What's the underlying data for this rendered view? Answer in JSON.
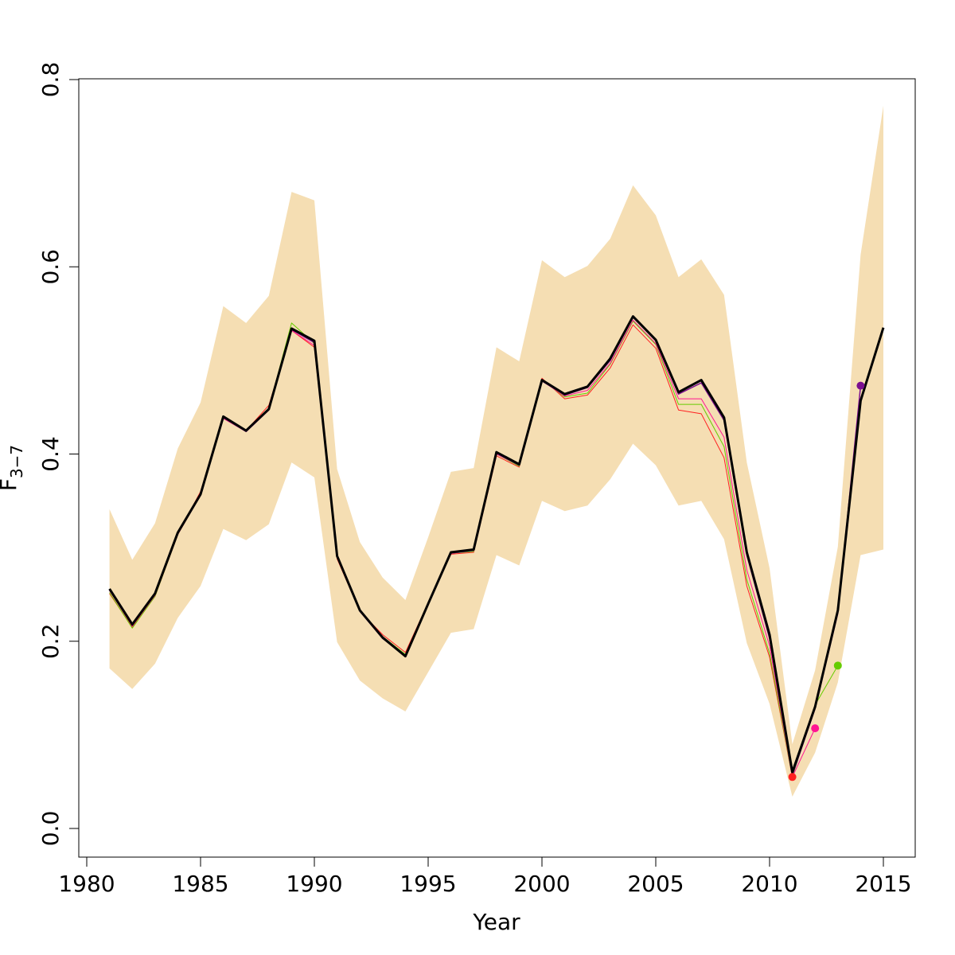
{
  "chart_data": {
    "type": "line",
    "xlabel": "Year",
    "ylabel_main": "F",
    "ylabel_sub": "3−7",
    "xlim": [
      1980,
      2015
    ],
    "ylim": [
      0,
      0.8
    ],
    "x_ticks": [
      "1980",
      "1985",
      "1990",
      "1995",
      "2000",
      "2005",
      "2010",
      "2015"
    ],
    "y_ticks": [
      "0.0",
      "0.2",
      "0.4",
      "0.6",
      "0.8"
    ],
    "band": {
      "color": "#f5deb3",
      "x": [
        1981,
        1982,
        1983,
        1984,
        1985,
        1986,
        1987,
        1988,
        1989,
        1990,
        1991,
        1992,
        1993,
        1994,
        1995,
        1996,
        1997,
        1998,
        1999,
        2000,
        2001,
        2002,
        2003,
        2004,
        2005,
        2006,
        2007,
        2008,
        2009,
        2010,
        2011,
        2012,
        2013,
        2014,
        2015
      ],
      "upper": [
        0.341,
        0.287,
        0.326,
        0.406,
        0.455,
        0.558,
        0.54,
        0.569,
        0.68,
        0.671,
        0.384,
        0.306,
        0.268,
        0.244,
        0.311,
        0.381,
        0.385,
        0.514,
        0.499,
        0.607,
        0.589,
        0.601,
        0.63,
        0.687,
        0.655,
        0.589,
        0.608,
        0.57,
        0.391,
        0.278,
        0.09,
        0.169,
        0.301,
        0.613,
        0.772
      ],
      "lower": [
        0.171,
        0.149,
        0.176,
        0.225,
        0.259,
        0.32,
        0.308,
        0.325,
        0.391,
        0.375,
        0.199,
        0.158,
        0.139,
        0.125,
        0.167,
        0.209,
        0.213,
        0.292,
        0.281,
        0.35,
        0.339,
        0.345,
        0.373,
        0.411,
        0.388,
        0.345,
        0.35,
        0.309,
        0.198,
        0.133,
        0.034,
        0.081,
        0.156,
        0.292,
        0.298
      ]
    },
    "series": [
      {
        "color": "#000000",
        "width": 3,
        "x": [
          1981,
          1982,
          1983,
          1984,
          1985,
          1986,
          1987,
          1988,
          1989,
          1990,
          1991,
          1992,
          1993,
          1994,
          1995,
          1996,
          1997,
          1998,
          1999,
          2000,
          2001,
          2002,
          2003,
          2004,
          2005,
          2006,
          2007,
          2008,
          2009,
          2010,
          2011,
          2012,
          2013,
          2014,
          2015
        ],
        "values": [
          0.256,
          0.218,
          0.251,
          0.316,
          0.357,
          0.44,
          0.425,
          0.448,
          0.534,
          0.521,
          0.291,
          0.233,
          0.204,
          0.184,
          0.24,
          0.295,
          0.298,
          0.402,
          0.389,
          0.479,
          0.464,
          0.472,
          0.502,
          0.547,
          0.522,
          0.466,
          0.479,
          0.439,
          0.295,
          0.207,
          0.06,
          0.13,
          0.233,
          0.457,
          0.535
        ]
      },
      {
        "color": "#7b0f8f",
        "width": 1.5,
        "x": [
          1981,
          1982,
          1983,
          1984,
          1985,
          1986,
          1987,
          1988,
          1989,
          1990,
          1991,
          1992,
          1993,
          1994,
          1995,
          1996,
          1997,
          1998,
          1999,
          2000,
          2001,
          2002,
          2003,
          2004,
          2005,
          2006,
          2007,
          2008,
          2009,
          2010,
          2011,
          2012,
          2013,
          2014
        ],
        "values": [
          0.255,
          0.217,
          0.25,
          0.315,
          0.356,
          0.439,
          0.424,
          0.447,
          0.533,
          0.519,
          0.29,
          0.232,
          0.203,
          0.184,
          0.239,
          0.294,
          0.297,
          0.401,
          0.388,
          0.478,
          0.463,
          0.471,
          0.5,
          0.546,
          0.521,
          0.464,
          0.476,
          0.436,
          0.292,
          0.203,
          0.057,
          0.128,
          0.23,
          0.473
        ],
        "end_marker": true
      },
      {
        "color": "#ff1493",
        "width": 1,
        "x": [
          1981,
          1982,
          1983,
          1984,
          1985,
          1986,
          1987,
          1988,
          1989,
          1990,
          1991,
          1992,
          1993,
          1994,
          1995,
          1996,
          1997,
          1998,
          1999,
          2000,
          2001,
          2002,
          2003,
          2004,
          2005,
          2006,
          2007,
          2008,
          2009,
          2010,
          2011,
          2012
        ],
        "values": [
          0.254,
          0.216,
          0.249,
          0.314,
          0.356,
          0.438,
          0.424,
          0.448,
          0.532,
          0.516,
          0.289,
          0.232,
          0.204,
          0.185,
          0.239,
          0.294,
          0.297,
          0.4,
          0.388,
          0.478,
          0.462,
          0.468,
          0.497,
          0.543,
          0.518,
          0.459,
          0.459,
          0.418,
          0.276,
          0.195,
          0.055,
          0.107
        ],
        "end_marker": true
      },
      {
        "color": "#66cc00",
        "width": 1,
        "x": [
          1981,
          1982,
          1983,
          1984,
          1985,
          1986,
          1987,
          1988,
          1989,
          1990,
          1991,
          1992,
          1993,
          1994,
          1995,
          1996,
          1997,
          1998,
          1999,
          2000,
          2001,
          2002,
          2003,
          2004,
          2005,
          2006,
          2007,
          2008,
          2009,
          2010,
          2011,
          2012,
          2013
        ],
        "values": [
          0.252,
          0.214,
          0.248,
          0.314,
          0.356,
          0.438,
          0.424,
          0.449,
          0.54,
          0.518,
          0.289,
          0.232,
          0.205,
          0.186,
          0.24,
          0.294,
          0.296,
          0.4,
          0.387,
          0.479,
          0.461,
          0.465,
          0.496,
          0.542,
          0.517,
          0.453,
          0.453,
          0.408,
          0.266,
          0.187,
          0.055,
          0.132,
          0.174
        ],
        "end_marker": true
      },
      {
        "color": "#ff2020",
        "width": 1,
        "x": [
          1981,
          1982,
          1983,
          1984,
          1985,
          1986,
          1987,
          1988,
          1989,
          1990,
          1991,
          1992,
          1993,
          1994,
          1995,
          1996,
          1997,
          1998,
          1999,
          2000,
          2001,
          2002,
          2003,
          2004,
          2005,
          2006,
          2007,
          2008,
          2009,
          2010,
          2011
        ],
        "values": [
          0.251,
          0.215,
          0.248,
          0.314,
          0.36,
          0.439,
          0.425,
          0.452,
          0.532,
          0.514,
          0.288,
          0.232,
          0.207,
          0.188,
          0.241,
          0.293,
          0.295,
          0.398,
          0.386,
          0.481,
          0.459,
          0.463,
          0.492,
          0.538,
          0.513,
          0.447,
          0.443,
          0.396,
          0.259,
          0.183,
          0.055
        ],
        "end_marker": true
      }
    ]
  }
}
